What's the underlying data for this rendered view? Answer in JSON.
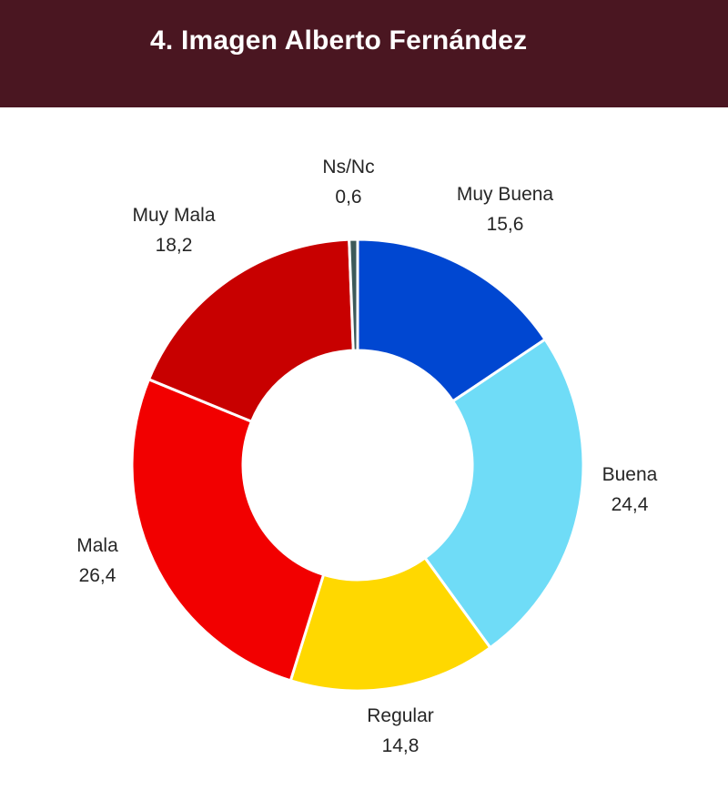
{
  "header": {
    "title": "4. Imagen Alberto Fernández"
  },
  "colors": {
    "header_bg": "#4a1621",
    "muy_buena": "#0047d1",
    "buena": "#6fdcf7",
    "regular": "#ffd800",
    "mala": "#f20000",
    "muy_mala": "#c80000",
    "ns_nc": "#3d5a5a"
  },
  "chart_data": {
    "type": "pie",
    "donut": true,
    "title": "4. Imagen Alberto Fernández",
    "legend": "none",
    "categories": [
      "Muy Buena",
      "Buena",
      "Regular",
      "Mala",
      "Muy Mala",
      "Ns/Nc"
    ],
    "values": [
      15.6,
      24.4,
      14.8,
      26.4,
      18.2,
      0.6
    ],
    "value_labels": [
      "15,6",
      "24,4",
      "14,8",
      "26,4",
      "18,2",
      "0,6"
    ],
    "colors": [
      "#0047d1",
      "#6fdcf7",
      "#ffd800",
      "#f20000",
      "#c80000",
      "#3d5a5a"
    ]
  }
}
